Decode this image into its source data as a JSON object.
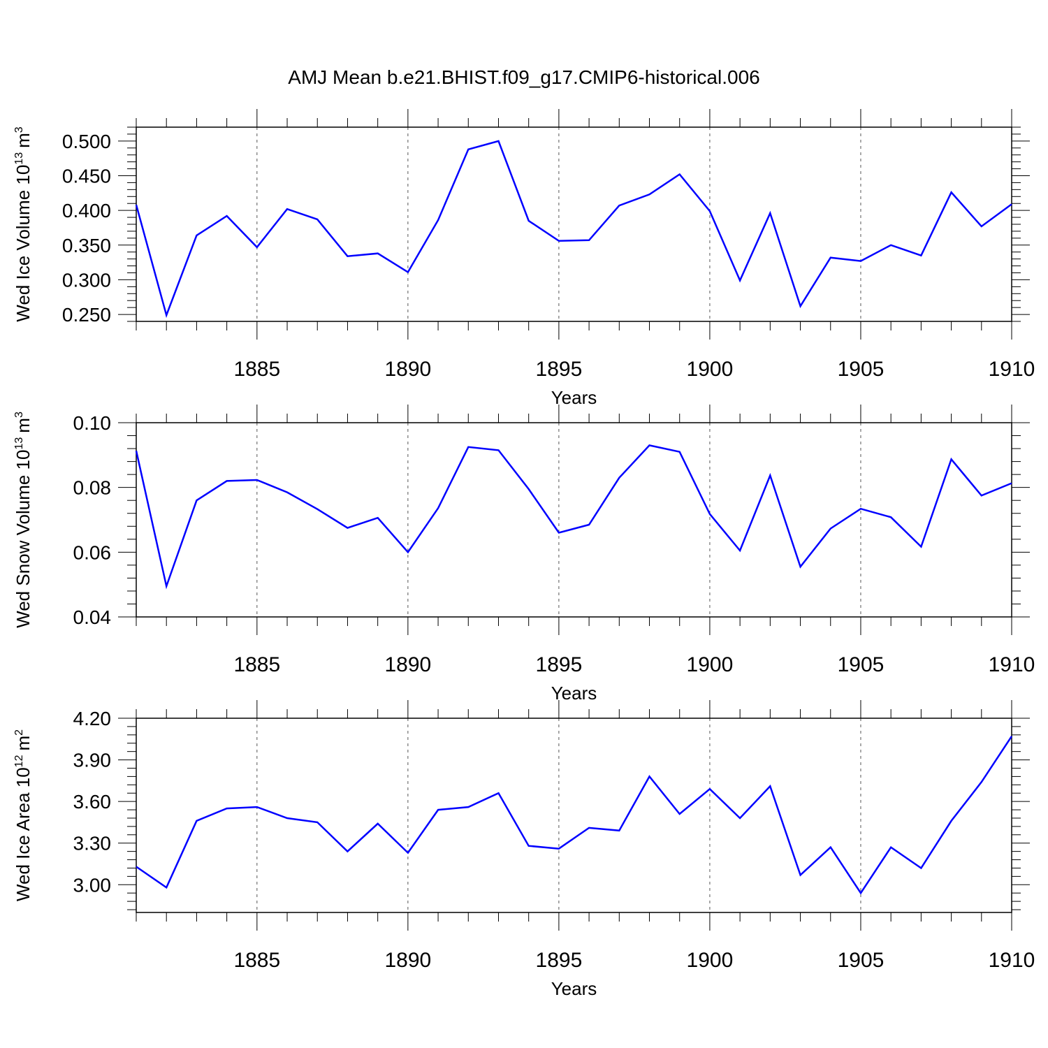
{
  "title": "AMJ Mean b.e21.BHIST.f09_g17.CMIP6-historical.006",
  "colors": {
    "line": "#0000ff",
    "axis": "#000000",
    "grid": "#555555"
  },
  "chart_data": [
    {
      "type": "line",
      "ylabel": "Wed Ice Volume 10",
      "ylabel_sup": "13",
      "ylabel_unit": "m",
      "ylabel_unit_sup": "3",
      "xlabel": "Years",
      "xlim": [
        1881,
        1910
      ],
      "ylim": [
        0.24,
        0.52
      ],
      "yticks": [
        0.25,
        0.3,
        0.35,
        0.4,
        0.45,
        0.5
      ],
      "ytick_labels": [
        "0.250",
        "0.300",
        "0.350",
        "0.400",
        "0.450",
        "0.500"
      ],
      "xticks": [
        1885,
        1890,
        1895,
        1900,
        1905,
        1910
      ],
      "xtick_labels": [
        "1885",
        "1890",
        "1895",
        "1900",
        "1905",
        "1910"
      ],
      "x": [
        1881,
        1882,
        1883,
        1884,
        1885,
        1886,
        1887,
        1888,
        1889,
        1890,
        1891,
        1892,
        1893,
        1894,
        1895,
        1896,
        1897,
        1898,
        1899,
        1900,
        1901,
        1902,
        1903,
        1904,
        1905,
        1906,
        1907,
        1908,
        1909,
        1910
      ],
      "values": [
        0.408,
        0.249,
        0.364,
        0.392,
        0.347,
        0.402,
        0.387,
        0.334,
        0.338,
        0.311,
        0.386,
        0.488,
        0.5,
        0.385,
        0.356,
        0.357,
        0.407,
        0.423,
        0.452,
        0.399,
        0.299,
        0.396,
        0.262,
        0.332,
        0.327,
        0.35,
        0.335,
        0.426,
        0.377,
        0.409
      ]
    },
    {
      "type": "line",
      "ylabel": "Wed Snow Volume 10",
      "ylabel_sup": "13",
      "ylabel_unit": "m",
      "ylabel_unit_sup": "3",
      "xlabel": "Years",
      "xlim": [
        1881,
        1910
      ],
      "ylim": [
        0.04,
        0.1
      ],
      "yticks": [
        0.04,
        0.06,
        0.08,
        0.1
      ],
      "ytick_labels": [
        "0.04",
        "0.06",
        "0.08",
        "0.10"
      ],
      "xticks": [
        1885,
        1890,
        1895,
        1900,
        1905,
        1910
      ],
      "xtick_labels": [
        "1885",
        "1890",
        "1895",
        "1900",
        "1905",
        "1910"
      ],
      "x": [
        1881,
        1882,
        1883,
        1884,
        1885,
        1886,
        1887,
        1888,
        1889,
        1890,
        1891,
        1892,
        1893,
        1894,
        1895,
        1896,
        1897,
        1898,
        1899,
        1900,
        1901,
        1902,
        1903,
        1904,
        1905,
        1906,
        1907,
        1908,
        1909,
        1910
      ],
      "values": [
        0.0913,
        0.0495,
        0.076,
        0.082,
        0.0823,
        0.0785,
        0.0733,
        0.0675,
        0.0706,
        0.06,
        0.0736,
        0.0925,
        0.0915,
        0.0795,
        0.066,
        0.0685,
        0.083,
        0.093,
        0.091,
        0.0718,
        0.0605,
        0.0837,
        0.0555,
        0.0673,
        0.0734,
        0.0708,
        0.0617,
        0.0887,
        0.0775,
        0.0813
      ]
    },
    {
      "type": "line",
      "ylabel": "Wed Ice Area 10",
      "ylabel_sup": "12",
      "ylabel_unit": "m",
      "ylabel_unit_sup": "2",
      "xlabel": "Years",
      "xlim": [
        1881,
        1910
      ],
      "ylim": [
        2.8,
        4.2
      ],
      "yticks": [
        3.0,
        3.3,
        3.6,
        3.9,
        4.2
      ],
      "ytick_labels": [
        "3.00",
        "3.30",
        "3.60",
        "3.90",
        "4.20"
      ],
      "xticks": [
        1885,
        1890,
        1895,
        1900,
        1905,
        1910
      ],
      "xtick_labels": [
        "1885",
        "1890",
        "1895",
        "1900",
        "1905",
        "1910"
      ],
      "x": [
        1881,
        1882,
        1883,
        1884,
        1885,
        1886,
        1887,
        1888,
        1889,
        1890,
        1891,
        1892,
        1893,
        1894,
        1895,
        1896,
        1897,
        1898,
        1899,
        1900,
        1901,
        1902,
        1903,
        1904,
        1905,
        1906,
        1907,
        1908,
        1909,
        1910
      ],
      "values": [
        3.13,
        2.98,
        3.46,
        3.55,
        3.56,
        3.48,
        3.45,
        3.24,
        3.44,
        3.23,
        3.54,
        3.56,
        3.66,
        3.28,
        3.26,
        3.41,
        3.39,
        3.78,
        3.51,
        3.69,
        3.48,
        3.71,
        3.07,
        3.27,
        2.94,
        3.27,
        3.12,
        3.46,
        3.74,
        4.07
      ]
    }
  ]
}
